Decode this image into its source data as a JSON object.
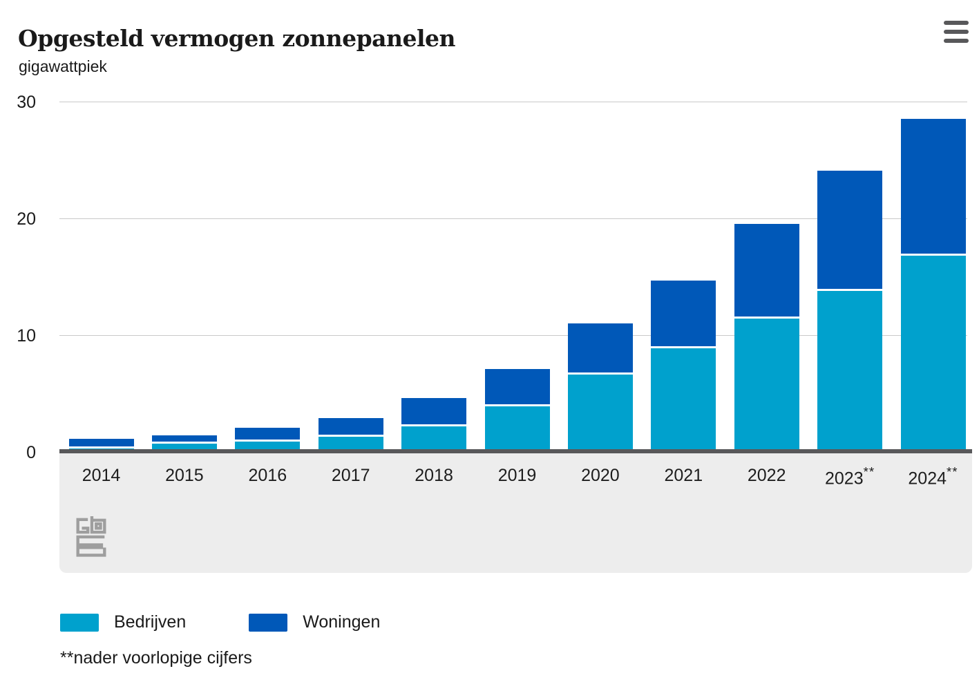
{
  "header": {
    "title": "Opgesteld vermogen zonnepanelen",
    "unit_label": "gigawattpiek",
    "menu_icon": "hamburger-menu-icon"
  },
  "chart_data": {
    "type": "bar",
    "stacked": true,
    "title": "Opgesteld vermogen zonnepanelen",
    "ylabel": "gigawattpiek",
    "xlabel": "",
    "categories": [
      "2014",
      "2015",
      "2016",
      "2017",
      "2018",
      "2019",
      "2020",
      "2021",
      "2022",
      "2023**",
      "2024**"
    ],
    "series": [
      {
        "name": "Bedrijven",
        "color": "#00a1cd",
        "values": [
          0.3,
          0.7,
          0.9,
          1.3,
          2.2,
          3.9,
          6.6,
          8.9,
          11.4,
          13.8,
          16.8
        ]
      },
      {
        "name": "Woningen",
        "color": "#0058b8",
        "values": [
          0.8,
          0.7,
          1.2,
          1.6,
          2.4,
          3.2,
          4.4,
          5.8,
          8.1,
          10.3,
          11.7
        ]
      }
    ],
    "totals": [
      1.1,
      1.4,
      2.1,
      2.9,
      4.6,
      7.1,
      11.0,
      14.7,
      19.5,
      24.1,
      28.5
    ],
    "yticks": [
      0,
      10,
      20,
      30
    ],
    "ylim": [
      0,
      30
    ],
    "grid": true,
    "legend_position": "bottom"
  },
  "footnote": "**nader voorlopige cijfers",
  "branding": {
    "logo": "cbs-logo"
  },
  "colors": {
    "bedrijven": "#00a1cd",
    "woningen": "#0058b8",
    "axis": "#58585a",
    "gridline": "#c9c9c9",
    "band": "#ededed",
    "text": "#1a1a1a"
  }
}
